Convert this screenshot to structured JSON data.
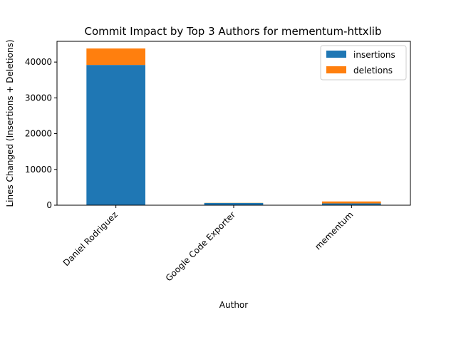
{
  "chart_data": {
    "type": "bar",
    "stacked": true,
    "title": "Commit Impact by Top 3 Authors for mementum-httxlib",
    "xlabel": "Author",
    "ylabel": "Lines Changed (Insertions + Deletions)",
    "categories": [
      "Daniel Rodriguez",
      "Google Code Exporter",
      "mementum"
    ],
    "series": [
      {
        "name": "insertions",
        "values": [
          39200,
          600,
          500
        ],
        "color": "#1f77b4"
      },
      {
        "name": "deletions",
        "values": [
          4600,
          50,
          550
        ],
        "color": "#ff7f0e"
      }
    ],
    "ylim": [
      0,
      45800
    ],
    "yticks": [
      0,
      10000,
      20000,
      30000,
      40000
    ],
    "legend_position": "top-right",
    "grid": false
  }
}
